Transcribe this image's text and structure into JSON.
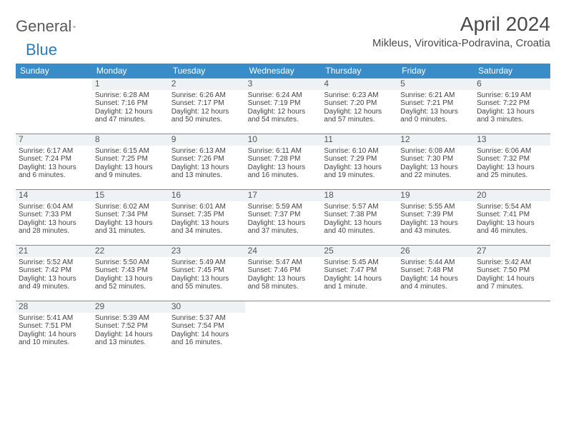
{
  "logo": {
    "text_a": "General",
    "text_b": "Blue"
  },
  "title": "April 2024",
  "subtitle": "Mikleus, Virovitica-Podravina, Croatia",
  "colors": {
    "header_bg": "#3a8cc9",
    "header_fg": "#ffffff",
    "daynum_bg": "#eef2f5",
    "rule": "#888888",
    "text": "#333333",
    "logo_gray": "#5a5a5a",
    "logo_blue": "#2b7bbf"
  },
  "dow": [
    "Sunday",
    "Monday",
    "Tuesday",
    "Wednesday",
    "Thursday",
    "Friday",
    "Saturday"
  ],
  "weeks": [
    [
      {
        "empty": true
      },
      {
        "n": "1",
        "sr": "Sunrise: 6:28 AM",
        "ss": "Sunset: 7:16 PM",
        "d1": "Daylight: 12 hours",
        "d2": "and 47 minutes."
      },
      {
        "n": "2",
        "sr": "Sunrise: 6:26 AM",
        "ss": "Sunset: 7:17 PM",
        "d1": "Daylight: 12 hours",
        "d2": "and 50 minutes."
      },
      {
        "n": "3",
        "sr": "Sunrise: 6:24 AM",
        "ss": "Sunset: 7:19 PM",
        "d1": "Daylight: 12 hours",
        "d2": "and 54 minutes."
      },
      {
        "n": "4",
        "sr": "Sunrise: 6:23 AM",
        "ss": "Sunset: 7:20 PM",
        "d1": "Daylight: 12 hours",
        "d2": "and 57 minutes."
      },
      {
        "n": "5",
        "sr": "Sunrise: 6:21 AM",
        "ss": "Sunset: 7:21 PM",
        "d1": "Daylight: 13 hours",
        "d2": "and 0 minutes."
      },
      {
        "n": "6",
        "sr": "Sunrise: 6:19 AM",
        "ss": "Sunset: 7:22 PM",
        "d1": "Daylight: 13 hours",
        "d2": "and 3 minutes."
      }
    ],
    [
      {
        "n": "7",
        "sr": "Sunrise: 6:17 AM",
        "ss": "Sunset: 7:24 PM",
        "d1": "Daylight: 13 hours",
        "d2": "and 6 minutes."
      },
      {
        "n": "8",
        "sr": "Sunrise: 6:15 AM",
        "ss": "Sunset: 7:25 PM",
        "d1": "Daylight: 13 hours",
        "d2": "and 9 minutes."
      },
      {
        "n": "9",
        "sr": "Sunrise: 6:13 AM",
        "ss": "Sunset: 7:26 PM",
        "d1": "Daylight: 13 hours",
        "d2": "and 13 minutes."
      },
      {
        "n": "10",
        "sr": "Sunrise: 6:11 AM",
        "ss": "Sunset: 7:28 PM",
        "d1": "Daylight: 13 hours",
        "d2": "and 16 minutes."
      },
      {
        "n": "11",
        "sr": "Sunrise: 6:10 AM",
        "ss": "Sunset: 7:29 PM",
        "d1": "Daylight: 13 hours",
        "d2": "and 19 minutes."
      },
      {
        "n": "12",
        "sr": "Sunrise: 6:08 AM",
        "ss": "Sunset: 7:30 PM",
        "d1": "Daylight: 13 hours",
        "d2": "and 22 minutes."
      },
      {
        "n": "13",
        "sr": "Sunrise: 6:06 AM",
        "ss": "Sunset: 7:32 PM",
        "d1": "Daylight: 13 hours",
        "d2": "and 25 minutes."
      }
    ],
    [
      {
        "n": "14",
        "sr": "Sunrise: 6:04 AM",
        "ss": "Sunset: 7:33 PM",
        "d1": "Daylight: 13 hours",
        "d2": "and 28 minutes."
      },
      {
        "n": "15",
        "sr": "Sunrise: 6:02 AM",
        "ss": "Sunset: 7:34 PM",
        "d1": "Daylight: 13 hours",
        "d2": "and 31 minutes."
      },
      {
        "n": "16",
        "sr": "Sunrise: 6:01 AM",
        "ss": "Sunset: 7:35 PM",
        "d1": "Daylight: 13 hours",
        "d2": "and 34 minutes."
      },
      {
        "n": "17",
        "sr": "Sunrise: 5:59 AM",
        "ss": "Sunset: 7:37 PM",
        "d1": "Daylight: 13 hours",
        "d2": "and 37 minutes."
      },
      {
        "n": "18",
        "sr": "Sunrise: 5:57 AM",
        "ss": "Sunset: 7:38 PM",
        "d1": "Daylight: 13 hours",
        "d2": "and 40 minutes."
      },
      {
        "n": "19",
        "sr": "Sunrise: 5:55 AM",
        "ss": "Sunset: 7:39 PM",
        "d1": "Daylight: 13 hours",
        "d2": "and 43 minutes."
      },
      {
        "n": "20",
        "sr": "Sunrise: 5:54 AM",
        "ss": "Sunset: 7:41 PM",
        "d1": "Daylight: 13 hours",
        "d2": "and 46 minutes."
      }
    ],
    [
      {
        "n": "21",
        "sr": "Sunrise: 5:52 AM",
        "ss": "Sunset: 7:42 PM",
        "d1": "Daylight: 13 hours",
        "d2": "and 49 minutes."
      },
      {
        "n": "22",
        "sr": "Sunrise: 5:50 AM",
        "ss": "Sunset: 7:43 PM",
        "d1": "Daylight: 13 hours",
        "d2": "and 52 minutes."
      },
      {
        "n": "23",
        "sr": "Sunrise: 5:49 AM",
        "ss": "Sunset: 7:45 PM",
        "d1": "Daylight: 13 hours",
        "d2": "and 55 minutes."
      },
      {
        "n": "24",
        "sr": "Sunrise: 5:47 AM",
        "ss": "Sunset: 7:46 PM",
        "d1": "Daylight: 13 hours",
        "d2": "and 58 minutes."
      },
      {
        "n": "25",
        "sr": "Sunrise: 5:45 AM",
        "ss": "Sunset: 7:47 PM",
        "d1": "Daylight: 14 hours",
        "d2": "and 1 minute."
      },
      {
        "n": "26",
        "sr": "Sunrise: 5:44 AM",
        "ss": "Sunset: 7:48 PM",
        "d1": "Daylight: 14 hours",
        "d2": "and 4 minutes."
      },
      {
        "n": "27",
        "sr": "Sunrise: 5:42 AM",
        "ss": "Sunset: 7:50 PM",
        "d1": "Daylight: 14 hours",
        "d2": "and 7 minutes."
      }
    ],
    [
      {
        "n": "28",
        "sr": "Sunrise: 5:41 AM",
        "ss": "Sunset: 7:51 PM",
        "d1": "Daylight: 14 hours",
        "d2": "and 10 minutes."
      },
      {
        "n": "29",
        "sr": "Sunrise: 5:39 AM",
        "ss": "Sunset: 7:52 PM",
        "d1": "Daylight: 14 hours",
        "d2": "and 13 minutes."
      },
      {
        "n": "30",
        "sr": "Sunrise: 5:37 AM",
        "ss": "Sunset: 7:54 PM",
        "d1": "Daylight: 14 hours",
        "d2": "and 16 minutes."
      },
      {
        "empty": true
      },
      {
        "empty": true
      },
      {
        "empty": true
      },
      {
        "empty": true
      }
    ]
  ]
}
